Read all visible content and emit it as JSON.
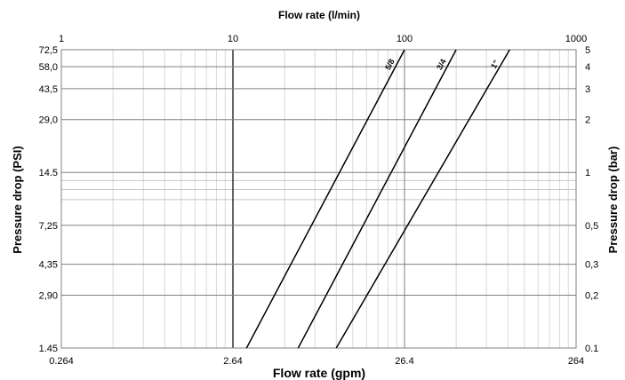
{
  "chart_data": {
    "type": "line",
    "title": "",
    "x_top_label": "Flow rate (l/min)",
    "x_bottom_label": "Flow rate (gpm)",
    "y_left_label": "Pressure drop (PSI)",
    "y_right_label": "Pressure drop (bar)",
    "x_scale": "log",
    "y_scale": "log",
    "xlim_lmin": [
      1,
      1000
    ],
    "ylim_bar": [
      0.1,
      5
    ],
    "x_top_ticks": [
      {
        "value": 1,
        "label": "1"
      },
      {
        "value": 10,
        "label": "10"
      },
      {
        "value": 100,
        "label": "100"
      },
      {
        "value": 1000,
        "label": "1000"
      }
    ],
    "x_bottom_ticks": [
      {
        "value": 1,
        "label": "0.264"
      },
      {
        "value": 10,
        "label": "2.64"
      },
      {
        "value": 100,
        "label": "26.4"
      },
      {
        "value": 1000,
        "label": "264"
      }
    ],
    "y_right_ticks": [
      {
        "value": 5,
        "label": "5"
      },
      {
        "value": 4,
        "label": "4"
      },
      {
        "value": 3,
        "label": "3"
      },
      {
        "value": 2,
        "label": "2"
      },
      {
        "value": 1,
        "label": "1"
      },
      {
        "value": 0.5,
        "label": "0,5"
      },
      {
        "value": 0.3,
        "label": "0,3"
      },
      {
        "value": 0.2,
        "label": "0,2"
      },
      {
        "value": 0.1,
        "label": "0.1"
      }
    ],
    "y_left_ticks": [
      {
        "value": 5,
        "label": "72,5"
      },
      {
        "value": 4,
        "label": "58,0"
      },
      {
        "value": 3,
        "label": "43,5"
      },
      {
        "value": 2,
        "label": "29,0"
      },
      {
        "value": 1,
        "label": "14.5"
      },
      {
        "value": 0.5,
        "label": "7,25"
      },
      {
        "value": 0.3,
        "label": "4,35"
      },
      {
        "value": 0.2,
        "label": "2,90"
      },
      {
        "value": 0.1,
        "label": "1.45"
      }
    ],
    "grid": true,
    "series": [
      {
        "name": "5/8",
        "points": [
          [
            12,
            0.1
          ],
          [
            100,
            5
          ]
        ]
      },
      {
        "name": "3/4",
        "points": [
          [
            24,
            0.1
          ],
          [
            200,
            5
          ]
        ]
      },
      {
        "name": "1\"",
        "points": [
          [
            40,
            0.1
          ],
          [
            410,
            5
          ]
        ]
      }
    ]
  }
}
